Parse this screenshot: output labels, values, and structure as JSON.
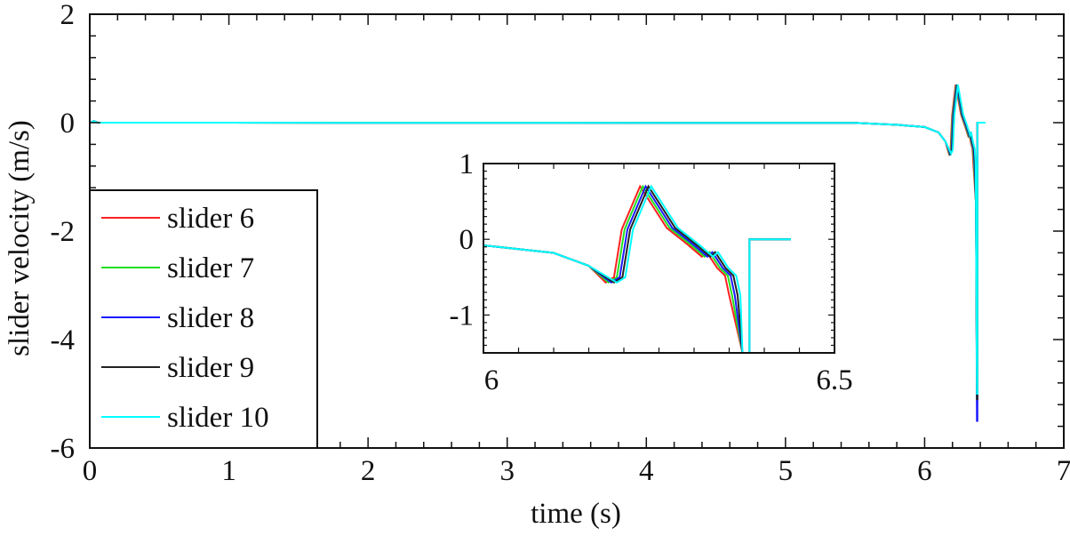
{
  "chart_data": {
    "type": "line",
    "xlabel": "time (s)",
    "ylabel": "slider velocity (m/s)",
    "xlim": [
      0,
      7
    ],
    "ylim": [
      -6,
      2
    ],
    "xticks": [
      "0",
      "1",
      "2",
      "3",
      "4",
      "5",
      "6",
      "7"
    ],
    "yticks": [
      "2",
      "0",
      "-2",
      "-4",
      "-6"
    ],
    "grid": false,
    "legend_position": "bottom-left",
    "series": [
      {
        "name": "slider 6",
        "color": "#ff2020",
        "min": -5.0
      },
      {
        "name": "slider 7",
        "color": "#20e020",
        "min": -5.0
      },
      {
        "name": "slider 8",
        "color": "#1a1aff",
        "min": -5.5
      },
      {
        "name": "slider 9",
        "color": "#222222",
        "min": -5.1
      },
      {
        "name": "slider 10",
        "color": "#00ffff",
        "min": -5.0
      }
    ],
    "shared_curve": {
      "t": [
        0,
        0.03,
        0.06,
        5.5,
        5.8,
        6.0,
        6.1,
        6.15,
        6.182,
        6.194,
        6.205,
        6.231,
        6.269,
        6.299,
        6.319,
        6.326,
        6.341,
        6.352,
        6.358,
        6.369,
        6.376,
        6.379,
        6.379,
        6.438
      ],
      "v": [
        0,
        0.03,
        0,
        -0.005,
        -0.04,
        -0.08,
        -0.18,
        -0.35,
        -0.57,
        -0.5,
        0.13,
        0.7,
        0.15,
        -0.07,
        -0.23,
        -0.17,
        -0.38,
        -0.48,
        -0.74,
        -1.5,
        "min",
        "min",
        0,
        0
      ]
    },
    "inset": {
      "xlim": [
        6,
        6.5
      ],
      "ylim": [
        -1.5,
        1
      ],
      "xticks": [
        "6",
        "6.5"
      ],
      "yticks": [
        "1",
        "0",
        "-1"
      ]
    }
  }
}
